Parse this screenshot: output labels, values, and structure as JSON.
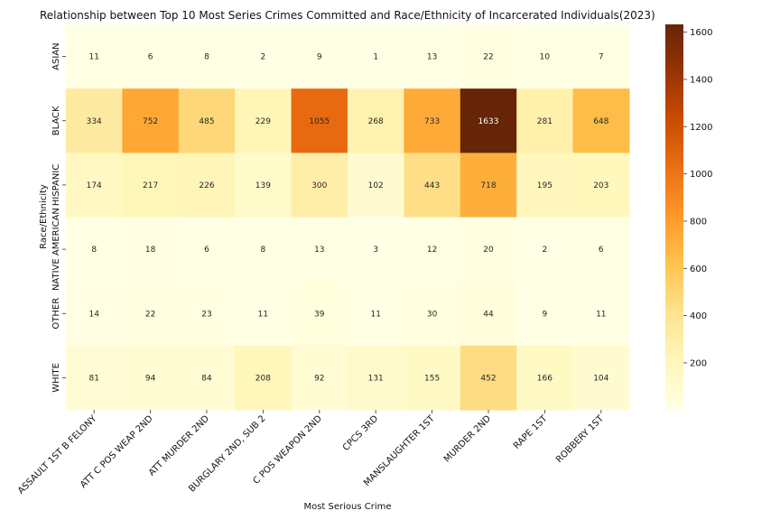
{
  "chart_data": {
    "type": "heatmap",
    "title": "Relationship between Top 10 Most Series Crimes Committed and Race/Ethnicity of Incarcerated Individuals(2023)",
    "xlabel": "Most Serious Crime",
    "ylabel": "Race/Ethnicity",
    "x_categories": [
      "ASSAULT 1ST B FELONY",
      "ATT C POS WEAP 2ND",
      "ATT MURDER 2ND",
      "BURGLARY 2ND, SUB 2",
      "C POS WEAPON 2ND",
      "CPCS 3RD",
      "MANSLAUGHTER 1ST",
      "MURDER 2ND",
      "RAPE 1ST",
      "ROBBERY 1ST"
    ],
    "y_categories": [
      "ASIAN",
      "BLACK",
      "HISPANIC",
      "NATIVE AMERICAN",
      "OTHER",
      "WHITE"
    ],
    "values": [
      [
        11,
        6,
        8,
        2,
        9,
        1,
        13,
        22,
        10,
        7
      ],
      [
        334,
        752,
        485,
        229,
        1055,
        268,
        733,
        1633,
        281,
        648
      ],
      [
        174,
        217,
        226,
        139,
        300,
        102,
        443,
        718,
        195,
        203
      ],
      [
        8,
        18,
        6,
        8,
        13,
        3,
        12,
        20,
        2,
        6
      ],
      [
        14,
        22,
        23,
        11,
        39,
        11,
        30,
        44,
        9,
        11
      ],
      [
        81,
        94,
        84,
        208,
        92,
        131,
        155,
        452,
        166,
        104
      ]
    ],
    "colorbar": {
      "min": 1,
      "max": 1633,
      "ticks": [
        200,
        400,
        600,
        800,
        1000,
        1200,
        1400,
        1600
      ]
    },
    "colormap": [
      "#ffffe5",
      "#fff7bc",
      "#fee391",
      "#fec44f",
      "#fe9929",
      "#ec7014",
      "#cc4c02",
      "#993404",
      "#662506"
    ],
    "annotations": true
  }
}
